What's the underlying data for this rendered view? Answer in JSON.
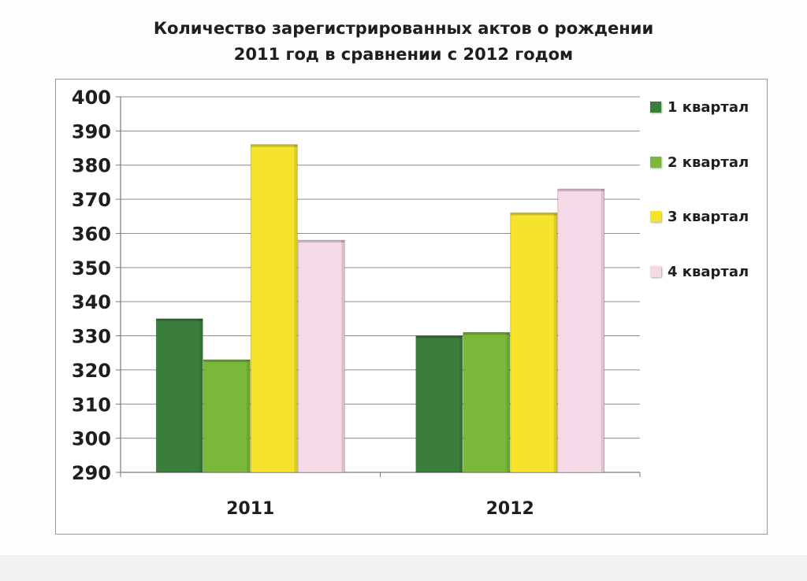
{
  "title_lines": [
    "Количество зарегистрированных актов о рождении",
    "2011 год в сравнении с 2012 годом"
  ],
  "chart_data": {
    "type": "bar",
    "title": "Количество зарегистрированных актов о рождении 2011 год в сравнении с 2012 годом",
    "categories": [
      "2011",
      "2012"
    ],
    "series": [
      {
        "name": "1 квартал",
        "values": [
          335,
          330
        ],
        "color": "#3b7d3a"
      },
      {
        "name": "2 квартал",
        "values": [
          323,
          331
        ],
        "color": "#7ab83a"
      },
      {
        "name": "3 квартал",
        "values": [
          386,
          366
        ],
        "color": "#f5e42b"
      },
      {
        "name": "4 квартал",
        "values": [
          358,
          373
        ],
        "color": "#f6d9e6"
      }
    ],
    "ylim": [
      290,
      400
    ],
    "y_ticks": [
      290,
      300,
      310,
      320,
      330,
      340,
      350,
      360,
      370,
      380,
      390,
      400
    ],
    "grid": true,
    "legend": "right",
    "xlabel": "",
    "ylabel": ""
  }
}
